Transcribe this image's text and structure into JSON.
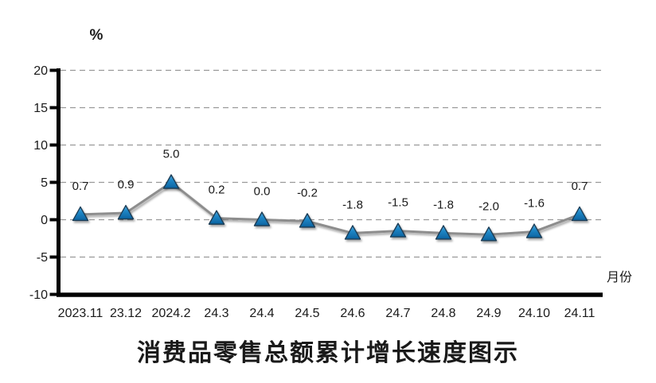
{
  "chart_data": {
    "type": "line",
    "title": "消费品零售总额累计增长速度图示",
    "y_unit_label": "%",
    "x_axis_label": "月份",
    "categories": [
      "2023.11",
      "23.12",
      "2024.2",
      "24.3",
      "24.4",
      "24.5",
      "24.6",
      "24.7",
      "24.8",
      "24.9",
      "24.10",
      "24.11"
    ],
    "values": [
      0.7,
      0.9,
      5.0,
      0.2,
      0.0,
      -0.2,
      -1.8,
      -1.5,
      -1.8,
      -2.0,
      -1.6,
      0.7
    ],
    "data_labels": [
      "0.7",
      "0.9",
      "5.0",
      "0.2",
      "0.0",
      "-0.2",
      "-1.8",
      "-1.5",
      "-1.8",
      "-2.0",
      "-1.6",
      "0.7"
    ],
    "y_ticks": [
      "20",
      "15",
      "10",
      "5",
      "0",
      "-5",
      "-10"
    ],
    "ylim": [
      -10,
      20
    ],
    "grid": "horizontal-dashed",
    "legend": "none",
    "marker": "triangle",
    "colors": {
      "line": "#8d8d8d",
      "marker_fill_top": "#55abdc",
      "marker_fill_mid": "#1f87c7",
      "marker_fill_bottom": "#0c63a0",
      "marker_stroke": "#1d3d56",
      "grid": "#999999",
      "axis": "#000000",
      "text": "#1a1a1a"
    }
  }
}
